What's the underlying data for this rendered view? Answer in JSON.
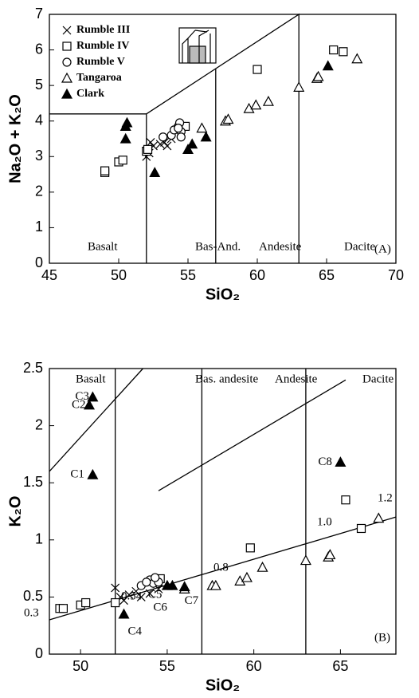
{
  "chart_data": [
    {
      "type": "scatter",
      "panel_label": "(A)",
      "x_label": "SiO₂",
      "y_label": "Na₂O + K₂O",
      "xlim": [
        45,
        70
      ],
      "ylim": [
        0,
        7
      ],
      "xticks": [
        45,
        50,
        55,
        60,
        65,
        70
      ],
      "yticks": [
        0,
        1,
        2,
        3,
        4,
        5,
        6,
        7
      ],
      "legend": "upper left",
      "region_labels": [
        "Basalt",
        "Bas-And.",
        "Andesite",
        "Dacite"
      ],
      "boundaries": [
        {
          "x": [
            45,
            52,
            52
          ],
          "y": [
            4.2,
            4.2,
            0
          ]
        },
        {
          "x": [
            52,
            63,
            63
          ],
          "y": [
            4.2,
            7,
            0
          ]
        },
        {
          "x": [
            57,
            57
          ],
          "y": [
            0,
            5.47
          ]
        }
      ],
      "series": [
        {
          "name": "Rumble III",
          "marker": "x",
          "color": "#000",
          "x": [
            52,
            52.2,
            52.5,
            53,
            53.3,
            53.5,
            52.3,
            53.8
          ],
          "y": [
            3.0,
            3.1,
            3.3,
            3.35,
            3.4,
            3.3,
            3.4,
            3.5
          ]
        },
        {
          "name": "Rumble IV",
          "marker": "square",
          "color": "#000",
          "x": [
            49,
            49,
            50,
            50.3,
            52,
            52.1,
            54.8,
            60,
            65.5,
            66.2
          ],
          "y": [
            2.55,
            2.6,
            2.85,
            2.9,
            3.15,
            3.2,
            3.85,
            5.45,
            6.0,
            5.95
          ]
        },
        {
          "name": "Rumble V",
          "marker": "circle",
          "color": "#000",
          "x": [
            53.2,
            53.8,
            54,
            54.3,
            54.4,
            54.5,
            54.5,
            54.3
          ],
          "y": [
            3.55,
            3.6,
            3.75,
            3.85,
            3.95,
            3.7,
            3.55,
            3.8
          ]
        },
        {
          "name": "Tangaroa",
          "marker": "triangle",
          "color": "#000",
          "x": [
            56,
            57.7,
            57.9,
            59.4,
            59.9,
            60.8,
            63,
            64.3,
            64.4,
            67.2
          ],
          "y": [
            3.8,
            4.0,
            4.05,
            4.35,
            4.45,
            4.55,
            4.95,
            5.2,
            5.25,
            5.75
          ]
        },
        {
          "name": "Clark",
          "marker": "triangle-filled",
          "color": "#000",
          "x": [
            50.5,
            50.6,
            50.5,
            52.6,
            55,
            55.3,
            56.3,
            65.1
          ],
          "y": [
            3.85,
            3.95,
            3.5,
            2.55,
            3.2,
            3.35,
            3.55,
            5.55
          ]
        }
      ]
    },
    {
      "type": "scatter",
      "panel_label": "(B)",
      "x_label": "SiO₂",
      "y_label": "K₂O",
      "xlim": [
        48.2,
        68.2
      ],
      "ylim": [
        0,
        2.5
      ],
      "xticks": [
        50,
        55,
        60,
        65
      ],
      "yticks": [
        0,
        0.5,
        1,
        1.5,
        2,
        2.5
      ],
      "region_labels": [
        "Basalt",
        "Bas. andesite",
        "Andesite",
        "Dacite"
      ],
      "trend_labels": [
        "0.3",
        "0.54",
        "0.8",
        "1.0",
        "1.2"
      ],
      "boundaries": [
        {
          "x": [
            52,
            52
          ],
          "y": [
            0,
            2.5
          ]
        },
        {
          "x": [
            57,
            57
          ],
          "y": [
            0,
            2.5
          ]
        },
        {
          "x": [
            63,
            63
          ],
          "y": [
            0,
            2.5
          ]
        },
        {
          "x": [
            48.2,
            53.6
          ],
          "y": [
            1.6,
            2.5
          ]
        },
        {
          "x": [
            54.5,
            65.3
          ],
          "y": [
            1.43,
            2.4
          ]
        },
        {
          "x": [
            48.2,
            68.2
          ],
          "y": [
            0.3,
            1.2
          ]
        }
      ],
      "series": [
        {
          "name": "Rumble III",
          "marker": "x",
          "color": "#000",
          "x": [
            52,
            52.3,
            52.8,
            53.2,
            53.5,
            54,
            54.5,
            52.5
          ],
          "y": [
            0.58,
            0.5,
            0.52,
            0.55,
            0.5,
            0.53,
            0.57,
            0.47
          ]
        },
        {
          "name": "Rumble IV",
          "marker": "square",
          "color": "#000",
          "x": [
            48.8,
            49,
            50,
            50.3,
            52,
            54.6,
            59.8,
            65.3,
            66.2
          ],
          "y": [
            0.4,
            0.4,
            0.43,
            0.45,
            0.45,
            0.66,
            0.93,
            1.35,
            1.1
          ]
        },
        {
          "name": "Rumble V",
          "marker": "circle",
          "color": "#000",
          "x": [
            53.5,
            54,
            54.2,
            54.5,
            54.3,
            53.8
          ],
          "y": [
            0.6,
            0.65,
            0.62,
            0.63,
            0.67,
            0.63
          ]
        },
        {
          "name": "Tangaroa",
          "marker": "triangle",
          "color": "#000",
          "x": [
            56,
            57.6,
            57.8,
            59.2,
            59.6,
            60.5,
            63,
            64.3,
            64.4,
            67.2
          ],
          "y": [
            0.57,
            0.6,
            0.6,
            0.64,
            0.67,
            0.76,
            0.82,
            0.85,
            0.87,
            1.19
          ]
        },
        {
          "name": "Clark",
          "marker": "triangle-filled",
          "color": "#000",
          "x": [
            50.7,
            50.5,
            50.7,
            52.5,
            55,
            55.3,
            56,
            65
          ],
          "y": [
            1.57,
            2.18,
            2.25,
            0.35,
            0.6,
            0.6,
            0.59,
            1.68
          ],
          "labels": [
            "C1",
            "C2",
            "C3",
            "C4",
            "C5",
            "C6",
            "C7",
            "C8"
          ]
        }
      ]
    }
  ]
}
